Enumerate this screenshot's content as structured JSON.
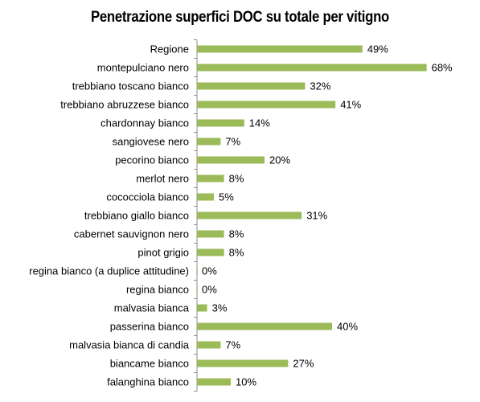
{
  "chart_data": {
    "type": "bar",
    "orientation": "horizontal",
    "title": "Penetrazione superfici DOC su totale  per vitigno",
    "categories": [
      "Regione",
      "montepulciano nero",
      "trebbiano toscano bianco",
      "trebbiano abruzzese bianco",
      "chardonnay bianco",
      "sangiovese nero",
      "pecorino bianco",
      "merlot nero",
      "cococciola bianco",
      "trebbiano giallo bianco",
      "cabernet sauvignon nero",
      "pinot grigio",
      "regina bianco (a duplice attitudine)",
      "regina bianco",
      "malvasia bianca",
      "passerina bianco",
      "malvasia bianca di candia",
      "biancame bianco",
      "falanghina bianco"
    ],
    "values": [
      49,
      68,
      32,
      41,
      14,
      7,
      20,
      8,
      5,
      31,
      8,
      8,
      0,
      0,
      3,
      40,
      7,
      27,
      10
    ],
    "value_labels": [
      "49%",
      "68%",
      "32%",
      "41%",
      "14%",
      "7%",
      "20%",
      "8%",
      "5%",
      "31%",
      "8%",
      "8%",
      "0%",
      "0%",
      "3%",
      "40%",
      "7%",
      "27%",
      "10%"
    ],
    "xlim": [
      0,
      100
    ],
    "value_unit": "%",
    "grid": false,
    "legend": "none",
    "colors": {
      "bar": "#9bbb59",
      "axis": "#8c8c8c",
      "text": "#000000"
    }
  }
}
